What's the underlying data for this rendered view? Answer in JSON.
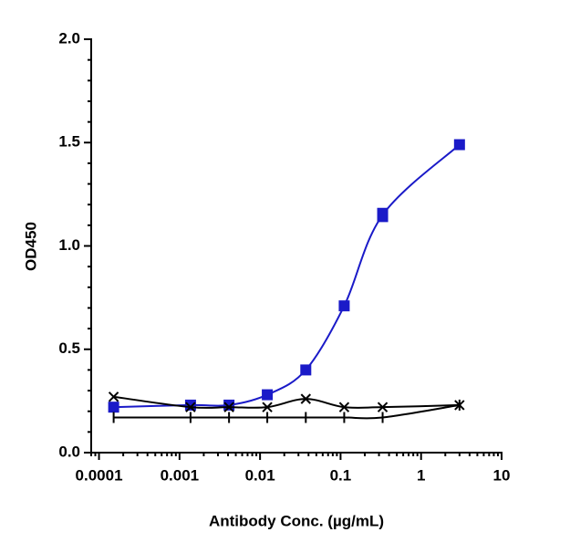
{
  "chart_data": {
    "type": "scatter",
    "x_label": "Antibody Conc. (µg/mL)",
    "y_label": "OD450",
    "x": [
      0.000152,
      0.00137,
      0.00412,
      0.0123,
      0.037,
      0.111,
      0.333,
      3
    ],
    "xscale": "log",
    "xlim": [
      8e-05,
      10
    ],
    "xticks": [
      0.0001,
      0.001,
      0.01,
      0.1,
      1,
      10
    ],
    "ylim": [
      0,
      2
    ],
    "yticks": [
      {
        "value": 0,
        "label": "0.0"
      },
      {
        "value": 0.5,
        "label": "0.5"
      },
      {
        "value": 1,
        "label": "1.0"
      },
      {
        "value": 1.5,
        "label": "1.5"
      },
      {
        "value": 2,
        "label": "2.0"
      }
    ],
    "series": [
      {
        "color": "#1a1ac8",
        "marker": "square",
        "values": [
          0.22,
          0.23,
          0.23,
          0.28,
          0.4,
          0.71,
          1.15,
          1.49
        ],
        "errors": [
          null,
          null,
          null,
          null,
          null,
          null,
          0.03,
          null
        ]
      },
      {
        "color": "#000000",
        "marker": "cross",
        "values": [
          0.27,
          0.22,
          0.22,
          0.22,
          0.26,
          0.22,
          0.22,
          0.23
        ]
      },
      {
        "color": "#000000",
        "marker": "tick",
        "values": [
          0.17,
          0.17,
          0.17,
          0.17,
          0.17,
          0.17,
          0.17,
          0.23
        ]
      }
    ]
  }
}
